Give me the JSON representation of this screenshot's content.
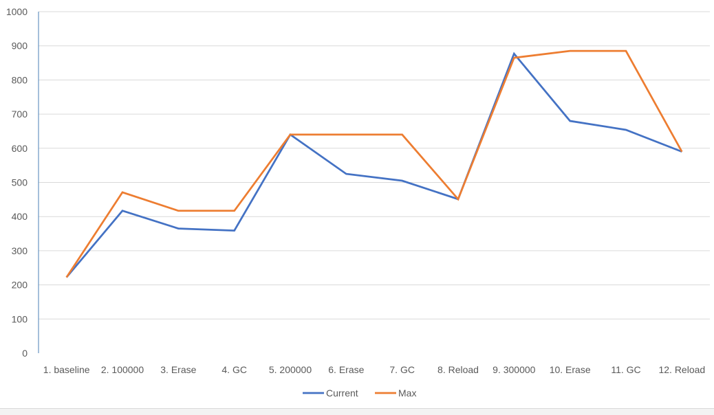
{
  "chart_data": {
    "type": "line",
    "title": "",
    "xlabel": "",
    "ylabel": "",
    "categories": [
      "1. baseline",
      "2. 100000",
      "3. Erase",
      "4. GC",
      "5. 200000",
      "6. Erase",
      "7. GC",
      "8. Reload",
      "9. 300000",
      "10. Erase",
      "11. GC",
      "12. Reload"
    ],
    "ylim": [
      0,
      1000
    ],
    "yticks": [
      0,
      100,
      200,
      300,
      400,
      500,
      600,
      700,
      800,
      900,
      1000
    ],
    "grid": true,
    "legend_position": "bottom",
    "series": [
      {
        "name": "Current",
        "color": "#4472C4",
        "values": [
          222,
          417,
          365,
          359,
          640,
          525,
          505,
          451,
          877,
          680,
          654,
          590
        ]
      },
      {
        "name": "Max",
        "color": "#ED7D31",
        "values": [
          222,
          471,
          417,
          417,
          640,
          640,
          640,
          451,
          865,
          885,
          885,
          590
        ]
      }
    ]
  }
}
